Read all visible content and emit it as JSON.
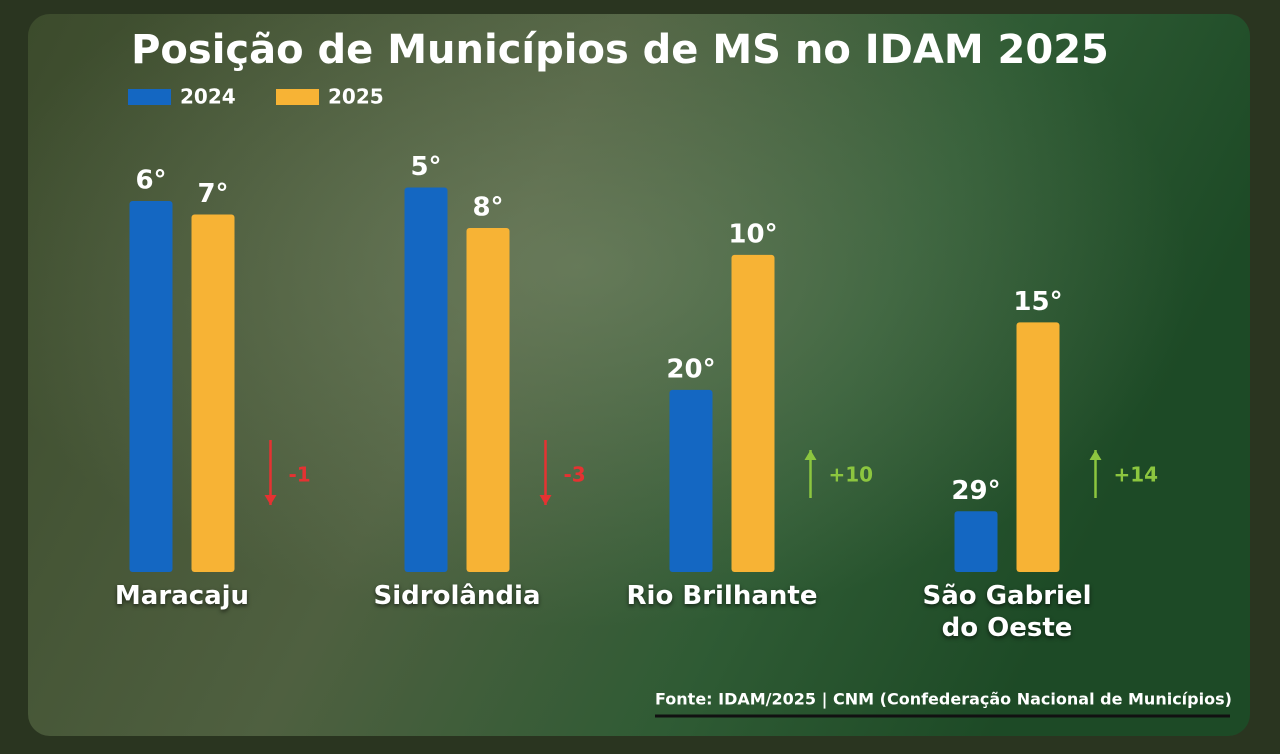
{
  "chart_data": {
    "type": "bar",
    "title": "Posição de Municípios de MS no IDAM 2025",
    "categories": [
      "Maracaju",
      "Sidrolândia",
      "Rio Brilhante",
      "São Gabriel do Oeste"
    ],
    "series": [
      {
        "name": "2024",
        "color": "#1467c2",
        "values": [
          6,
          5,
          20,
          29
        ],
        "value_labels": [
          "6°",
          "5°",
          "20°",
          "29°"
        ]
      },
      {
        "name": "2025",
        "color": "#f7b335",
        "values": [
          7,
          8,
          10,
          15
        ],
        "value_labels": [
          "7°",
          "8°",
          "10°",
          "15°"
        ]
      }
    ],
    "ylim": [
      33.5,
      0
    ],
    "annotations": [
      "-1",
      "-3",
      "+10",
      "+14"
    ],
    "source": "Fonte: IDAM/2025 | CNM (Confederação Nacional de Municípios)"
  }
}
